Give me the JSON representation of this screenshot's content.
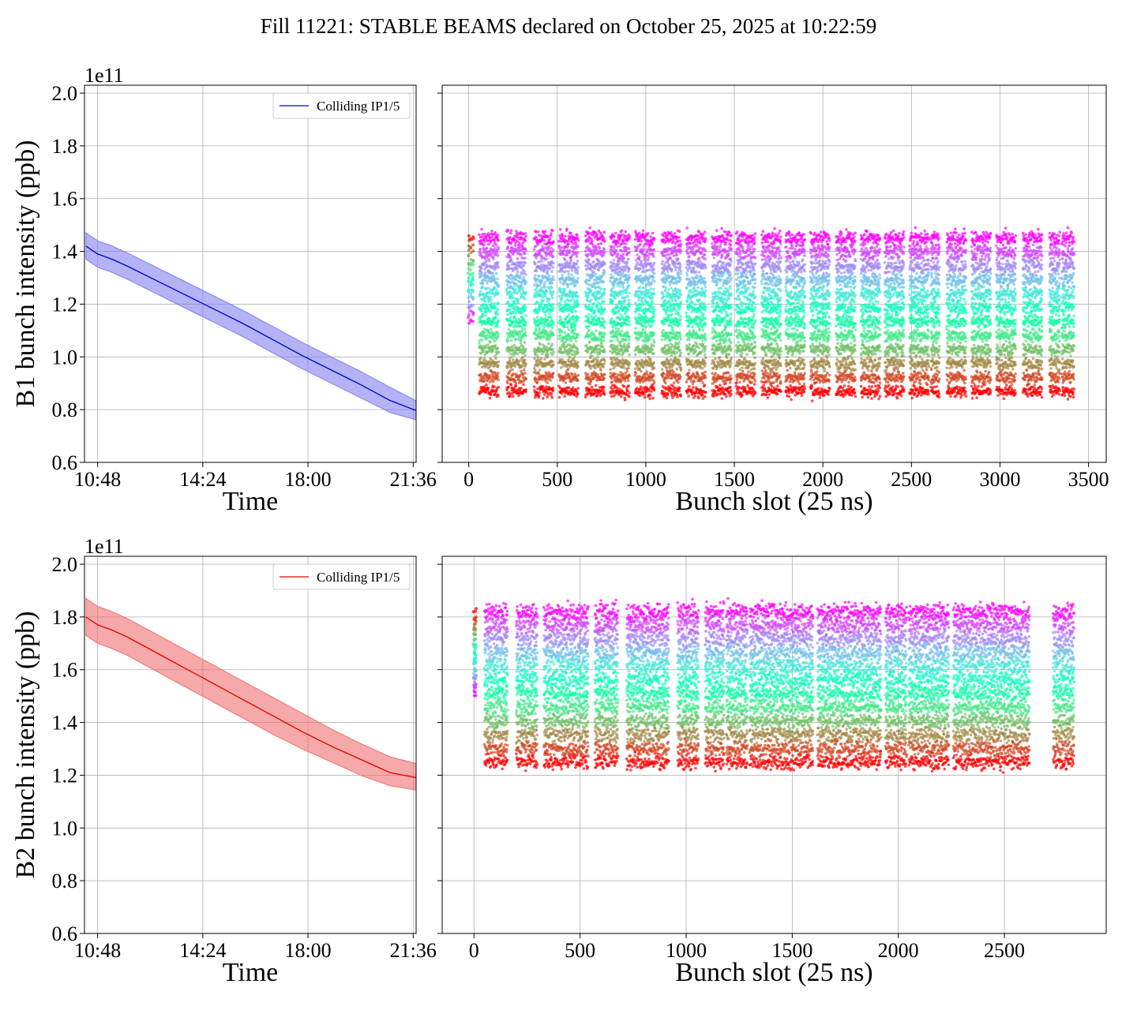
{
  "suptitle": "Fill 11221: STABLE BEAMS declared on October 25, 2025 at 10:22:59",
  "chart_data": [
    {
      "type": "line",
      "id": "b1-time",
      "xlabel": "Time",
      "ylabel": "B1 bunch intensity (ppb)",
      "offset_text": "1e11",
      "x_unit": "hours after 10:48",
      "xlim": [
        -0.45,
        10.9
      ],
      "ylim": [
        0.6,
        2.03
      ],
      "x_ticks": [
        0,
        3.6,
        7.2,
        10.8
      ],
      "x_tick_labels": [
        "10:48",
        "14:24",
        "18:00",
        "21:36"
      ],
      "y_ticks": [
        0.6,
        0.8,
        1.0,
        1.2,
        1.4,
        1.6,
        1.8,
        2.0
      ],
      "y_tick_labels": [
        "0.6",
        "0.8",
        "1.0",
        "1.2",
        "1.4",
        "1.6",
        "1.8",
        "2.0"
      ],
      "grid": true,
      "legend": {
        "position": "upper right",
        "label": "Colliding IP1/5"
      },
      "color": "#0000cc",
      "band_color": "#8080f0",
      "series": [
        {
          "name": "Colliding IP1/5",
          "x": [
            -0.4,
            0,
            0.5,
            1,
            2,
            3,
            4,
            5,
            6,
            7,
            8,
            9,
            10,
            11.4
          ],
          "y": [
            1.42,
            1.39,
            1.37,
            1.345,
            1.29,
            1.235,
            1.18,
            1.125,
            1.065,
            1.005,
            0.95,
            0.895,
            0.835,
            0.775
          ],
          "lower": [
            1.37,
            1.34,
            1.32,
            1.295,
            1.24,
            1.185,
            1.13,
            1.075,
            1.015,
            0.955,
            0.9,
            0.845,
            0.79,
            0.745
          ],
          "upper": [
            1.47,
            1.44,
            1.42,
            1.395,
            1.34,
            1.285,
            1.23,
            1.175,
            1.115,
            1.055,
            1.0,
            0.945,
            0.885,
            0.805
          ]
        }
      ]
    },
    {
      "type": "scatter",
      "id": "b1-slot",
      "xlabel": "Bunch slot (25 ns)",
      "xlim": [
        -150,
        3600
      ],
      "ylim": [
        0.6,
        2.03
      ],
      "x_ticks": [
        0,
        500,
        1000,
        1500,
        2000,
        2500,
        3000,
        3500
      ],
      "x_tick_labels": [
        "0",
        "500",
        "1000",
        "1500",
        "2000",
        "2500",
        "3000",
        "3500"
      ],
      "y_ticks": [
        0.6,
        0.8,
        1.0,
        1.2,
        1.4,
        1.6,
        1.8,
        2.0
      ],
      "grid": true,
      "colormap": "rainbow",
      "pilot_slots": [
        0,
        12,
        24
      ],
      "trains": [
        [
          60,
          170
        ],
        [
          215,
          325
        ],
        [
          370,
          480
        ],
        [
          510,
          620
        ],
        [
          660,
          770
        ],
        [
          800,
          910
        ],
        [
          940,
          1050
        ],
        [
          1090,
          1200
        ],
        [
          1230,
          1340
        ],
        [
          1375,
          1485
        ],
        [
          1510,
          1620
        ],
        [
          1655,
          1765
        ],
        [
          1790,
          1900
        ],
        [
          1930,
          2040
        ],
        [
          2075,
          2185
        ],
        [
          2215,
          2325
        ],
        [
          2350,
          2460
        ],
        [
          2490,
          2600
        ],
        [
          2610,
          2660
        ],
        [
          2700,
          2810
        ],
        [
          2840,
          2950
        ],
        [
          2980,
          3090
        ],
        [
          3130,
          3240
        ],
        [
          3280,
          3340
        ],
        [
          3350,
          3420
        ]
      ],
      "train_y": {
        "top": 1.45,
        "bottom": 0.87,
        "spread_high": 0.05,
        "spread_low": 0.04
      }
    },
    {
      "type": "line",
      "id": "b2-time",
      "xlabel": "Time",
      "ylabel": "B2 bunch intensity (ppb)",
      "offset_text": "1e11",
      "x_unit": "hours after 10:48",
      "xlim": [
        -0.45,
        10.9
      ],
      "ylim": [
        0.6,
        2.03
      ],
      "x_ticks": [
        0,
        3.6,
        7.2,
        10.8
      ],
      "x_tick_labels": [
        "10:48",
        "14:24",
        "18:00",
        "21:36"
      ],
      "y_ticks": [
        0.6,
        0.8,
        1.0,
        1.2,
        1.4,
        1.6,
        1.8,
        2.0
      ],
      "y_tick_labels": [
        "0.6",
        "0.8",
        "1.0",
        "1.2",
        "1.4",
        "1.6",
        "1.8",
        "2.0"
      ],
      "grid": true,
      "legend": {
        "position": "upper right",
        "label": "Colliding IP1/5"
      },
      "color": "#dd0000",
      "band_color": "#f07070",
      "series": [
        {
          "name": "Colliding IP1/5",
          "x": [
            -0.4,
            0,
            0.5,
            1,
            2,
            3,
            4,
            5,
            6,
            7,
            8,
            9,
            10,
            11.4
          ],
          "y": [
            1.8,
            1.77,
            1.75,
            1.725,
            1.665,
            1.605,
            1.545,
            1.485,
            1.425,
            1.365,
            1.31,
            1.26,
            1.21,
            1.18
          ],
          "lower": [
            1.73,
            1.7,
            1.68,
            1.655,
            1.595,
            1.535,
            1.475,
            1.415,
            1.355,
            1.3,
            1.25,
            1.2,
            1.16,
            1.135
          ],
          "upper": [
            1.87,
            1.84,
            1.82,
            1.795,
            1.735,
            1.675,
            1.615,
            1.555,
            1.495,
            1.435,
            1.375,
            1.32,
            1.27,
            1.23
          ]
        }
      ]
    },
    {
      "type": "scatter",
      "id": "b2-slot",
      "xlabel": "Bunch slot (25 ns)",
      "xlim": [
        -150,
        2980
      ],
      "ylim": [
        0.6,
        2.03
      ],
      "x_ticks": [
        0,
        500,
        1000,
        1500,
        2000,
        2500
      ],
      "x_tick_labels": [
        "0",
        "500",
        "1000",
        "1500",
        "2000",
        "2500"
      ],
      "y_ticks": [
        0.6,
        0.8,
        1.0,
        1.2,
        1.4,
        1.6,
        1.8,
        2.0
      ],
      "grid": true,
      "colormap": "rainbow",
      "pilot_slots": [
        0,
        4,
        8
      ],
      "trains": [
        [
          50,
          160
        ],
        [
          200,
          300
        ],
        [
          330,
          430
        ],
        [
          430,
          540
        ],
        [
          570,
          680
        ],
        [
          720,
          820
        ],
        [
          820,
          920
        ],
        [
          960,
          1060
        ],
        [
          1090,
          1180
        ],
        [
          1190,
          1290
        ],
        [
          1300,
          1400
        ],
        [
          1400,
          1500
        ],
        [
          1500,
          1600
        ],
        [
          1620,
          1720
        ],
        [
          1720,
          1820
        ],
        [
          1820,
          1920
        ],
        [
          1940,
          2040
        ],
        [
          2050,
          2150
        ],
        [
          2150,
          2240
        ],
        [
          2260,
          2360
        ],
        [
          2360,
          2460
        ],
        [
          2460,
          2560
        ],
        [
          2560,
          2620
        ],
        [
          2730,
          2830
        ]
      ],
      "train_y": {
        "top": 1.82,
        "bottom": 1.25,
        "spread_high": 0.06,
        "spread_low": 0.05
      }
    }
  ]
}
